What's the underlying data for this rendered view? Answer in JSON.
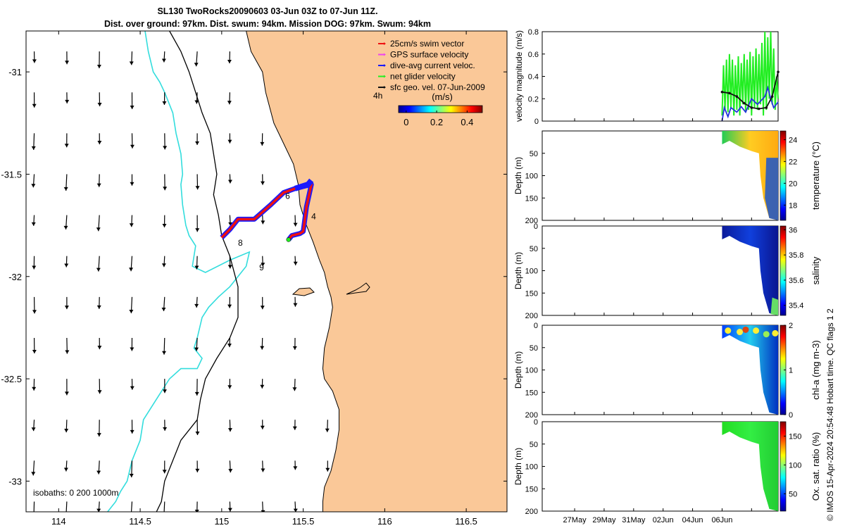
{
  "title_line1": "SL130 TwoRocks20090603 03-Jun 03Z to 07-Jun 11Z.",
  "title_line2": "Dist. over ground: 97km. Dist. swum: 94km. Mission DOG: 97km. Swum: 94km",
  "side_note": "© IMOS 15-Apr-2024 20:54:48 Hobart time. QC flags 1  2",
  "colors": {
    "land": "#fac898",
    "isobath_200": "#33dddd",
    "track_blue": "#1a1aff",
    "track_red": "#ee1111",
    "speed_green": "#22ee22",
    "line_black": "#111111",
    "line_blue": "#2233dd"
  },
  "chart_data": [
    {
      "type": "scatter",
      "name": "map",
      "xlim": [
        113.8,
        116.75
      ],
      "ylim": [
        -33.15,
        -30.8
      ],
      "xticks": [
        114,
        114.5,
        115,
        115.5,
        116,
        116.5
      ],
      "xtick_labels": [
        "114",
        "114.5",
        "115",
        "115.5",
        "116",
        "116.5"
      ],
      "yticks": [
        -31,
        -31.5,
        -32,
        -32.5,
        -33
      ],
      "ytick_labels": [
        "-31",
        "-31.5",
        "-32",
        "-32.5",
        "-33"
      ],
      "legend_position": "top-right",
      "legend": [
        "25cm/s swim vector",
        "GPS surface velocity",
        "dive-avg current veloc.",
        "net glider velocity",
        "sfc geo. vel. 07-Jun-2009"
      ],
      "legend_colors": [
        "#ee1111",
        "#ee44ee",
        "#1a1aff",
        "#22ee22",
        "#111111"
      ],
      "colorbar_title": "(m/s)",
      "colorbar_ticks": [
        0,
        0.2,
        0.4
      ],
      "colorbar_tick_labels": [
        "0",
        "0.2",
        "0.4"
      ],
      "colorbar_range": [
        -0.05,
        0.5
      ],
      "time_label": "4h",
      "isobath_label": "isobaths: 0  200  1000m",
      "day_labels": [
        {
          "text": "4",
          "lon": 115.55,
          "lat": -31.72
        },
        {
          "text": "6",
          "lon": 115.39,
          "lat": -31.62
        },
        {
          "text": "8",
          "lon": 115.1,
          "lat": -31.85
        },
        {
          "text": "9",
          "lon": 115.23,
          "lat": -31.97
        }
      ],
      "track_lon": [
        115.0,
        115.05,
        115.1,
        115.2,
        115.3,
        115.38,
        115.45,
        115.55,
        115.52,
        115.5,
        115.48,
        115.43,
        115.41
      ],
      "track_lat": [
        -31.81,
        -31.77,
        -31.72,
        -31.72,
        -31.65,
        -31.59,
        -31.57,
        -31.55,
        -31.66,
        -31.78,
        -31.79,
        -31.8,
        -31.82
      ],
      "coast_lon": [
        115.15,
        115.18,
        115.25,
        115.27,
        115.32,
        115.38,
        115.44,
        115.47,
        115.48,
        115.52,
        115.56,
        115.6,
        115.63,
        115.65,
        115.67,
        115.68,
        115.66,
        115.63,
        115.62,
        115.63,
        115.68,
        115.72,
        115.72,
        115.7,
        115.67,
        115.63,
        115.62,
        115.62,
        115.61,
        115.61
      ],
      "coast_lat": [
        -30.8,
        -30.9,
        -31.0,
        -31.1,
        -31.25,
        -31.35,
        -31.45,
        -31.55,
        -31.65,
        -31.75,
        -31.83,
        -31.92,
        -31.98,
        -32.05,
        -32.1,
        -32.15,
        -32.25,
        -32.35,
        -32.45,
        -32.5,
        -32.56,
        -32.65,
        -32.75,
        -32.85,
        -32.95,
        -33.03,
        -33.1,
        -33.15,
        -33.2,
        -33.3
      ],
      "isobath200_lon": [
        114.53,
        114.55,
        114.58,
        114.62,
        114.65,
        114.7,
        114.72,
        114.75,
        114.76,
        114.75,
        114.76,
        114.78,
        114.8,
        114.84,
        114.82,
        114.9,
        115.05,
        115.17,
        115.15,
        115.05,
        114.98,
        114.92,
        114.88,
        114.85,
        114.83,
        114.88,
        114.85,
        114.75,
        114.68,
        114.6,
        114.52,
        114.5,
        114.45,
        114.42,
        114.38,
        114.35,
        114.3
      ],
      "isobath200_lat": [
        -30.8,
        -30.9,
        -31.0,
        -31.05,
        -31.1,
        -31.2,
        -31.3,
        -31.4,
        -31.5,
        -31.55,
        -31.65,
        -31.75,
        -31.8,
        -31.85,
        -31.95,
        -31.98,
        -31.92,
        -31.88,
        -31.95,
        -32.05,
        -32.1,
        -32.15,
        -32.2,
        -32.3,
        -32.35,
        -32.4,
        -32.45,
        -32.45,
        -32.5,
        -32.6,
        -32.7,
        -32.8,
        -32.9,
        -33.0,
        -33.05,
        -33.1,
        -33.15
      ],
      "isobath1000_lon": [
        114.68,
        114.75,
        114.8,
        114.84,
        114.88,
        114.93,
        114.95,
        114.97,
        114.95,
        114.98,
        115.0,
        115.05,
        115.1,
        115.1,
        115.05,
        114.97,
        114.9,
        114.87,
        114.85,
        114.75,
        114.7,
        114.65,
        114.63,
        114.6
      ],
      "isobath1000_lat": [
        -30.8,
        -30.9,
        -31.0,
        -31.1,
        -31.2,
        -31.3,
        -31.4,
        -31.5,
        -31.6,
        -31.7,
        -31.8,
        -31.9,
        -32.05,
        -32.2,
        -32.3,
        -32.4,
        -32.5,
        -32.6,
        -32.7,
        -32.8,
        -32.9,
        -33.0,
        -33.1,
        -33.15
      ]
    },
    {
      "type": "line",
      "name": "velocity",
      "ylabel": "velocity magnitude (m/s)",
      "ylim": [
        0,
        0.8
      ],
      "yticks": [
        0,
        0.2,
        0.4,
        0.6,
        0.8
      ],
      "ytick_labels": [
        "0",
        "0.2",
        "0.4",
        "0.6",
        "0.8"
      ],
      "xlim": [
        -9.2,
        6.8
      ],
      "xticks": [
        -7,
        -5,
        -3,
        -1,
        1,
        3,
        5
      ],
      "series": [
        {
          "x": [
            3.0,
            3.5,
            4.0,
            4.5,
            5.0,
            5.5,
            6.0,
            6.4,
            6.8
          ],
          "values": [
            0.26,
            0.25,
            0.22,
            0.16,
            0.12,
            0.11,
            0.12,
            0.22,
            0.44
          ]
        },
        {
          "x": [
            3.0,
            3.15,
            3.4,
            3.6,
            4.0,
            4.3,
            4.6,
            5.0,
            5.4,
            5.9,
            6.1,
            6.3,
            6.5,
            6.8
          ],
          "values": [
            0.0,
            0.12,
            0.04,
            0.12,
            0.08,
            0.13,
            0.08,
            0.2,
            0.15,
            0.22,
            0.3,
            0.2,
            0.12,
            0.17
          ]
        },
        {
          "x": [
            3.0,
            3.1,
            3.2,
            3.3,
            3.4,
            3.5,
            3.6,
            3.7,
            3.8,
            3.9,
            4.0,
            4.1,
            4.2,
            4.3,
            4.4,
            4.5,
            4.6,
            4.7,
            4.8,
            4.9,
            5.0,
            5.1,
            5.2,
            5.3,
            5.4,
            5.5,
            5.6,
            5.7,
            5.8,
            5.9,
            6.0,
            6.1,
            6.2,
            6.3,
            6.4,
            6.5,
            6.6,
            6.7,
            6.8
          ],
          "values": [
            0.05,
            0.5,
            0.1,
            0.55,
            0.08,
            0.6,
            0.12,
            0.55,
            0.05,
            0.5,
            0.1,
            0.58,
            0.05,
            0.52,
            0.15,
            0.6,
            0.08,
            0.55,
            0.1,
            0.62,
            0.05,
            0.58,
            0.12,
            0.65,
            0.1,
            0.6,
            0.15,
            0.7,
            0.05,
            0.8,
            0.1,
            0.75,
            0.2,
            0.8,
            0.15,
            0.65,
            0.1,
            0.4,
            0.2
          ]
        }
      ]
    },
    {
      "type": "heatmap",
      "name": "temperature",
      "ylabel": "Depth (m)",
      "colorbar_label": "temperature (°C)",
      "ylim": [
        200,
        0
      ],
      "yticks": [
        0,
        50,
        100,
        150,
        200
      ],
      "ytick_labels": [
        "",
        "50",
        "100",
        "150",
        "200"
      ],
      "colorbar_range": [
        16.6,
        24.8
      ],
      "colorbar_ticks": [
        18,
        20,
        22,
        24
      ],
      "colorbar_tick_labels": [
        "18",
        "20",
        "22",
        "24"
      ]
    },
    {
      "type": "heatmap",
      "name": "salinity",
      "ylabel": "Depth (m)",
      "colorbar_label": "salinity",
      "ylim": [
        200,
        0
      ],
      "yticks": [
        0,
        50,
        100,
        150,
        200
      ],
      "ytick_labels": [
        "0",
        "50",
        "100",
        "150",
        "200"
      ],
      "colorbar_range": [
        35.32,
        36.03
      ],
      "colorbar_ticks": [
        35.4,
        35.6,
        35.8,
        36
      ],
      "colorbar_tick_labels": [
        "35.4",
        "35.6",
        "35.8",
        "36"
      ]
    },
    {
      "type": "heatmap",
      "name": "chl-a",
      "ylabel": "Depth (m)",
      "colorbar_label": "chl-a (mg m-3)",
      "ylim": [
        200,
        0
      ],
      "yticks": [
        0,
        50,
        100,
        150,
        200
      ],
      "ytick_labels": [
        "0",
        "50",
        "100",
        "150",
        "200"
      ],
      "colorbar_range": [
        0,
        2
      ],
      "colorbar_ticks": [
        0,
        1,
        2
      ],
      "colorbar_tick_labels": [
        "0",
        "1",
        "2"
      ]
    },
    {
      "type": "heatmap",
      "name": "oxygen",
      "ylabel": "Depth (m)",
      "colorbar_label": "Ox. sat. ratio (%)",
      "ylim": [
        200,
        0
      ],
      "yticks": [
        0,
        50,
        100,
        150,
        200
      ],
      "ytick_labels": [
        "0",
        "50",
        "100",
        "150",
        "200"
      ],
      "colorbar_range": [
        20,
        175
      ],
      "colorbar_ticks": [
        50,
        100,
        150
      ],
      "colorbar_tick_labels": [
        "50",
        "100",
        "150"
      ],
      "xlim": [
        -9.2,
        6.8
      ],
      "xticks": [
        -7,
        -5,
        -3,
        -1,
        1,
        3,
        5
      ],
      "xtick_labels": [
        "27May",
        "29May",
        "31May",
        "02Jun",
        "04Jun",
        "06Jun",
        ""
      ]
    }
  ]
}
